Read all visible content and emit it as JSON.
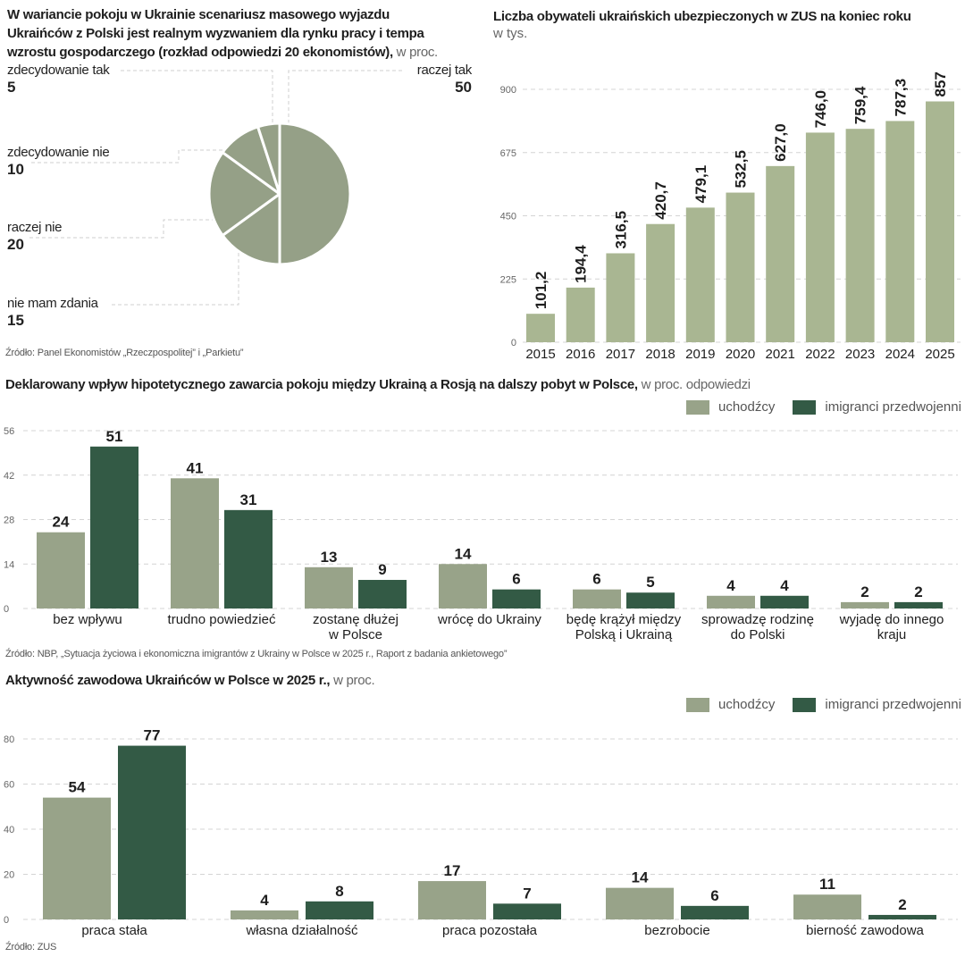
{
  "colors": {
    "light_bar": "#98a389",
    "right_bar": "#a9b692",
    "dark_bar": "#335a45",
    "pie": "#95a087",
    "grid": "#d4d4d4",
    "axis_text": "#666666",
    "label_text": "#1e1e1e"
  },
  "pie_panel": {
    "title": "W wariancie pokoju w Ukrainie scenariusz masowego wyjazdu Ukraińców z Polski jest realnym wyzwaniem dla rynku pracy i tempa wzrostu gospodarczego (rozkład odpowiedzi 20 ekonomistów),",
    "title_line1": "W wariancie pokoju w Ukrainie scenariusz masowego wyjazdu",
    "title_line2": "Ukraińców z Polski jest realnym wyzwaniem dla rynku pracy i tempa",
    "title_line3": "wzrostu gospodarczego (rozkład odpowiedzi 20 ekonomistów),",
    "unit": " w proc.",
    "source": "Źródło: Panel Ekonomistów „Rzeczpospolitej” i „Parkietu”"
  },
  "zus_panel": {
    "title": "Liczba obywateli ukraińskich ubezpieczonych w ZUS na koniec roku",
    "unit": "w tys."
  },
  "peace_panel": {
    "title": "Deklarowany wpływ hipotetycznego zawarcia pokoju między Ukrainą a Rosją na dalszy pobyt w Polsce,",
    "unit": " w proc. odpowiedzi",
    "source": "Źródło: NBP, „Sytuacja życiowa i ekonomiczna imigrantów z Ukrainy w Polsce w 2025 r., Raport z badania ankietowego”"
  },
  "activity_panel": {
    "title": "Aktywność zawodowa Ukraińców w Polsce w 2025 r.,",
    "unit": " w proc.",
    "source": "Źródło: ZUS"
  },
  "legend": {
    "refugees": "uchodźcy",
    "prewar": "imigranci przedwojenni"
  },
  "chart_data": [
    {
      "type": "pie",
      "title": "W wariancie pokoju w Ukrainie scenariusz masowego wyjazdu Ukraińców z Polski jest realnym wyzwaniem dla rynku pracy i tempa wzrostu gospodarczego (rozkład odpowiedzi 20 ekonomistów), w proc.",
      "slices": [
        {
          "label": "raczej tak",
          "value": 50
        },
        {
          "label": "nie mam zdania",
          "value": 15
        },
        {
          "label": "raczej nie",
          "value": 20
        },
        {
          "label": "zdecydowanie nie",
          "value": 10
        },
        {
          "label": "zdecydowanie tak",
          "value": 5
        }
      ]
    },
    {
      "type": "bar",
      "title": "Liczba obywateli ukraińskich ubezpieczonych w ZUS na koniec roku",
      "ylabel": "w tys.",
      "categories": [
        "2015",
        "2016",
        "2017",
        "2018",
        "2019",
        "2020",
        "2021",
        "2022",
        "2023",
        "2024",
        "2025"
      ],
      "values": [
        101.2,
        194.4,
        316.5,
        420.7,
        479.1,
        532.5,
        627.0,
        746.0,
        759.4,
        787.3,
        857.1
      ],
      "value_labels": [
        "101,2",
        "194,4",
        "316,5",
        "420,7",
        "479,1",
        "532,5",
        "627,0",
        "746,0",
        "759,4",
        "787,3",
        "857,1"
      ],
      "yticks": [
        0,
        225,
        450,
        675,
        900
      ],
      "ylim": [
        0,
        900
      ],
      "grid": true
    },
    {
      "type": "bar",
      "title": "Deklarowany wpływ hipotetycznego zawarcia pokoju między Ukrainą a Rosją na dalszy pobyt w Polsce, w proc. odpowiedzi",
      "categories": [
        [
          "bez wpływu"
        ],
        [
          "trudno powiedzieć"
        ],
        [
          "zostanę dłużej",
          "w Polsce"
        ],
        [
          "wrócę do Ukrainy"
        ],
        [
          "będę krążył między",
          "Polską i Ukrainą"
        ],
        [
          "sprowadzę rodzinę",
          "do Polski"
        ],
        [
          "wyjadę do innego",
          "kraju"
        ]
      ],
      "series": [
        {
          "name": "uchodźcy",
          "values": [
            24,
            41,
            13,
            14,
            6,
            4,
            2
          ]
        },
        {
          "name": "imigranci przedwojenni",
          "values": [
            51,
            31,
            9,
            6,
            5,
            4,
            2
          ]
        }
      ],
      "yticks": [
        0,
        14,
        28,
        42,
        56
      ],
      "ylim": [
        0,
        56
      ],
      "legend": "top-right",
      "grid": true
    },
    {
      "type": "bar",
      "title": "Aktywność zawodowa Ukraińców w Polsce w 2025 r., w proc.",
      "categories": [
        "praca stała",
        "własna działalność",
        "praca pozostała",
        "bezrobocie",
        "bierność zawodowa"
      ],
      "series": [
        {
          "name": "uchodźcy",
          "values": [
            54,
            4,
            17,
            14,
            11
          ]
        },
        {
          "name": "imigranci przedwojenni",
          "values": [
            77,
            8,
            7,
            6,
            2
          ]
        }
      ],
      "yticks": [
        0,
        20,
        40,
        60,
        80
      ],
      "ylim": [
        0,
        80
      ],
      "legend": "top-right",
      "grid": true
    }
  ]
}
